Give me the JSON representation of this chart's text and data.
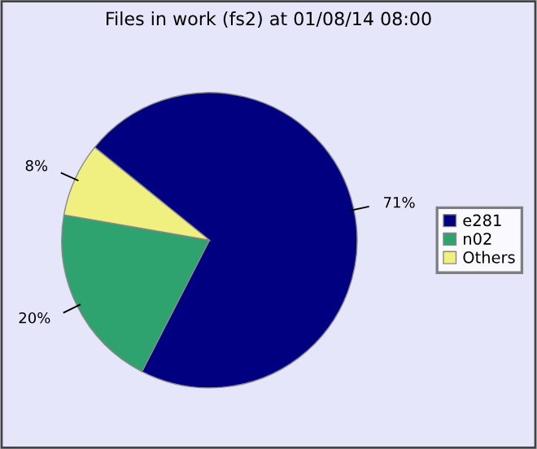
{
  "chart_data": {
    "type": "pie",
    "title": "Files in work (fs2) at 01/08/14 08:00",
    "categories": [
      "e281",
      "n02",
      "Others"
    ],
    "values": [
      71,
      20,
      8
    ],
    "value_labels": [
      "71%",
      "20%",
      "8%"
    ],
    "colors": [
      "#000080",
      "#2ea36f",
      "#f0f080"
    ],
    "legend": "right"
  }
}
